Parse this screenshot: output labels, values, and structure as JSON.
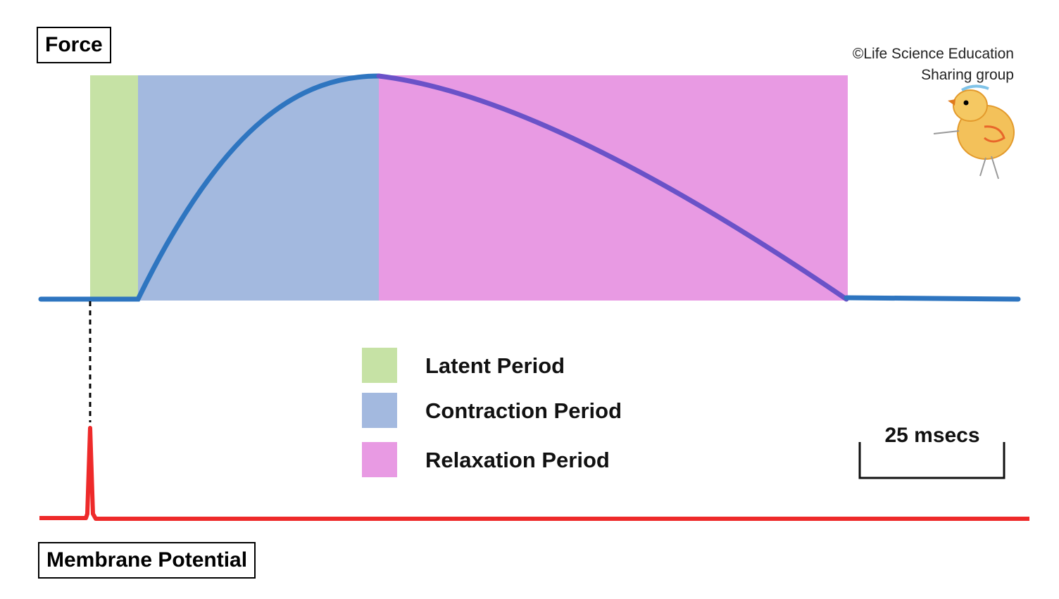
{
  "labels": {
    "force": "Force",
    "membrane_potential": "Membrane Potential"
  },
  "copyright": {
    "line1": "©Life Science Education",
    "line2": "Sharing group"
  },
  "legend": [
    {
      "label": "Latent Period",
      "color": "#c6e2a5"
    },
    {
      "label": "Contraction Period",
      "color": "#a3b9df"
    },
    {
      "label": "Relaxation Period",
      "color": "#e89ae3"
    }
  ],
  "scale_bar": {
    "label": "25 msecs"
  },
  "colors": {
    "force_trace": "#2e75c0",
    "relaxation_trace": "#6a52c8",
    "membrane_trace": "#ee2a2a",
    "marker_line": "#000000"
  },
  "icons": {
    "mascot": "chick-icon"
  }
}
